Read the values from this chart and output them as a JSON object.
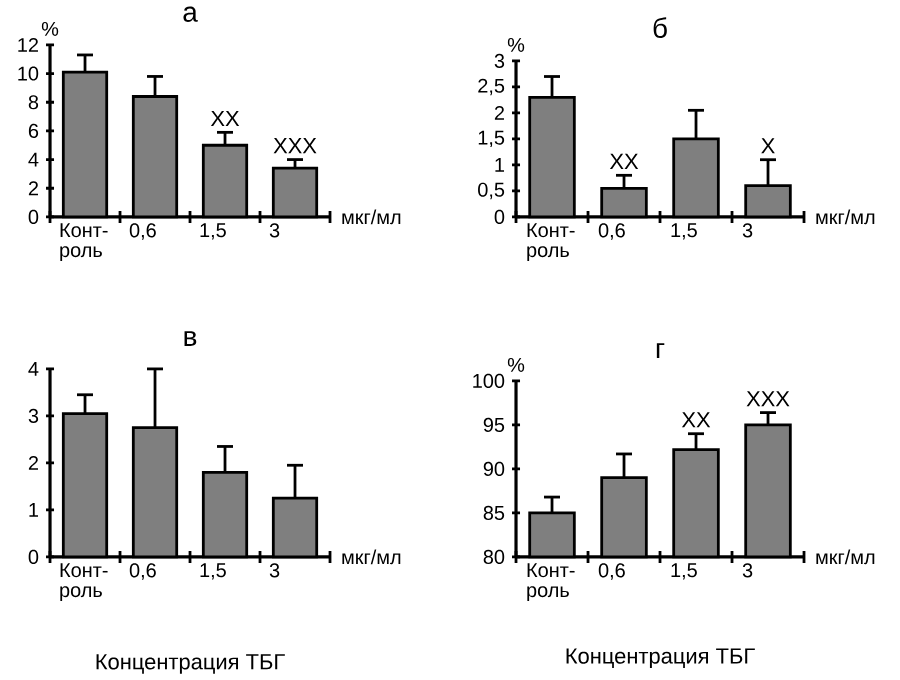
{
  "chart_data": [
    {
      "type": "bar",
      "title": "а",
      "ylabel": "%",
      "xlabel": "мкг/мл",
      "categories": [
        "Конт- роль",
        "0,6",
        "1,5",
        "3"
      ],
      "values": [
        10.1,
        8.4,
        5.0,
        3.4
      ],
      "errors": [
        1.2,
        1.4,
        0.9,
        0.6
      ],
      "color": "#7f7f7f",
      "ylim": [
        0,
        12
      ],
      "yticks": [
        0,
        2,
        4,
        6,
        8,
        10,
        12
      ],
      "annotations": [
        {
          "text": "XX",
          "x": "1,5",
          "y": 5.9
        },
        {
          "text": "XXX",
          "x": "3",
          "y": 4.0
        }
      ]
    },
    {
      "type": "bar",
      "title": "б",
      "ylabel": "%",
      "xlabel": "мкг/мл",
      "categories": [
        "Конт- роль",
        "0,6",
        "1,5",
        "3"
      ],
      "values": [
        2.3,
        0.55,
        1.5,
        0.6
      ],
      "errors": [
        0.4,
        0.25,
        0.55,
        0.5
      ],
      "color": "#7f7f7f",
      "ylim": [
        0,
        3
      ],
      "yticks": [
        0,
        {
          "value": 0.5,
          "label": "0,5"
        },
        1,
        {
          "value": 1.5,
          "label": "1,5"
        },
        2,
        {
          "value": 2.5,
          "label": "2,5"
        },
        3
      ],
      "annotations": [
        {
          "text": "XX",
          "x": "0,6",
          "y": 0.8
        },
        {
          "text": "X",
          "x": "3",
          "y": 0.6
        }
      ]
    },
    {
      "type": "bar",
      "title": "в",
      "xlabel": "мкг/мл",
      "categories": [
        "Конт- роль",
        "0,6",
        "1,5",
        "3"
      ],
      "values": [
        3.05,
        2.75,
        1.8,
        1.25
      ],
      "errors": [
        0.4,
        1.25,
        0.55,
        0.7
      ],
      "color": "#7f7f7f",
      "ylim": [
        0,
        4
      ],
      "yticks": [
        0,
        1,
        2,
        3,
        4
      ],
      "annotations": [
        "Концентрация ТБГ"
      ]
    },
    {
      "type": "bar",
      "title": "г",
      "ylabel": "%",
      "xlabel": "мкг/мл",
      "categories": [
        "Конт- роль",
        "0,6",
        "1,5",
        "3"
      ],
      "values": [
        85.0,
        89.0,
        92.2,
        95.0
      ],
      "errors": [
        1.8,
        2.7,
        1.8,
        1.4
      ],
      "color": "#7f7f7f",
      "ylim": [
        80,
        100
      ],
      "yticks": [
        80,
        85,
        90,
        95,
        100
      ],
      "annotations": [
        {
          "text": "XX",
          "x": "1,5",
          "y": 94.0
        },
        {
          "text": "XXX",
          "x": "3",
          "y": 95.0
        },
        "Концентрация ТБГ"
      ]
    }
  ]
}
